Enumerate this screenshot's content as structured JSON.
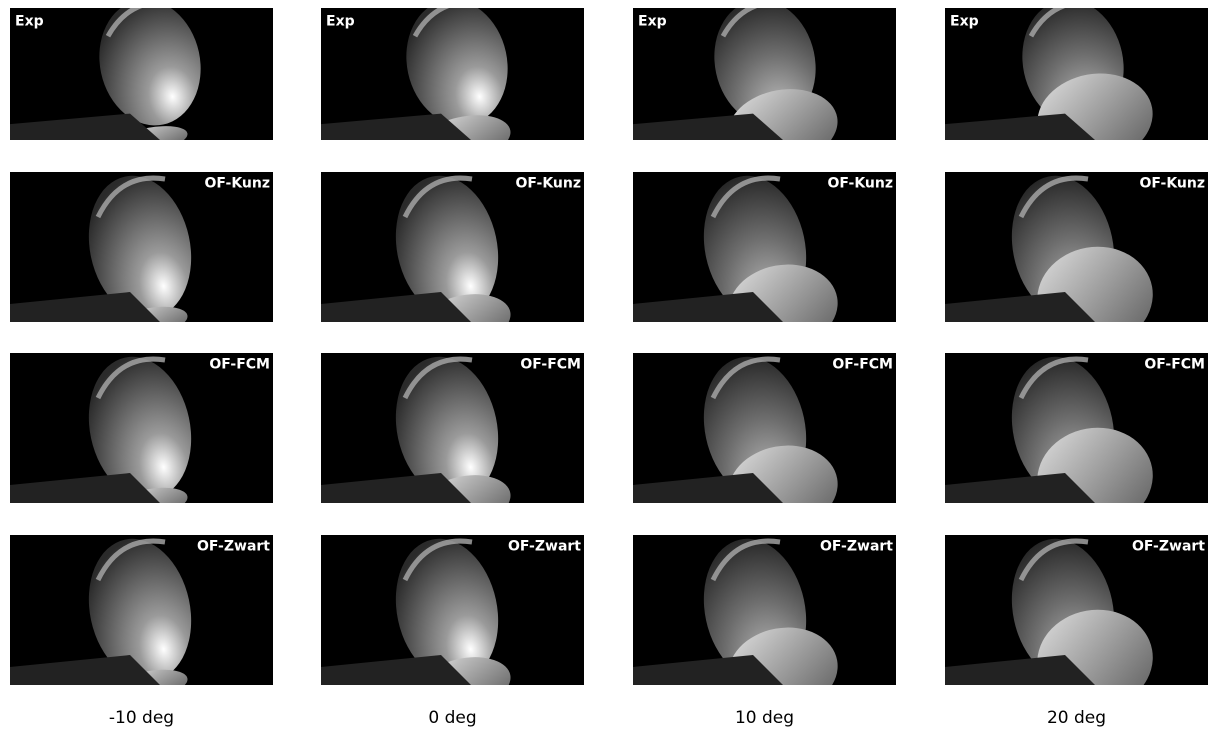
{
  "rows": [
    {
      "label": "Exp"
    },
    {
      "label": "OF-Kunz"
    },
    {
      "label": "OF-FCM"
    },
    {
      "label": "OF-Zwart"
    }
  ],
  "columns": [
    "-10 deg",
    "0 deg",
    "10 deg",
    "20 deg"
  ]
}
